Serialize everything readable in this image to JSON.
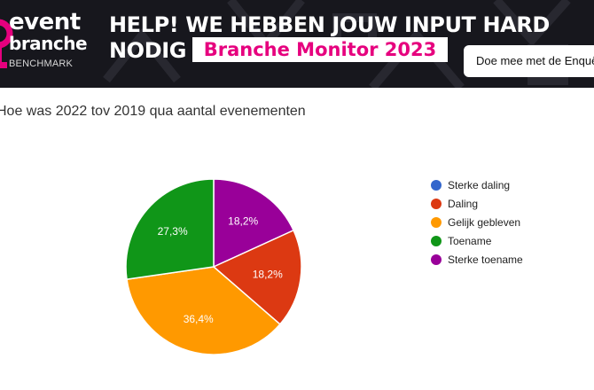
{
  "banner": {
    "logo": {
      "line1": "event",
      "line2": "branche",
      "line3": "BENCHMARK"
    },
    "headline_line1": "HELP! WE HEBBEN JOUW INPUT HARD",
    "headline_line2": "NODIG",
    "badge": "Branche Monitor 2023",
    "cta_label": "Doe mee met de Enquête",
    "colors": {
      "background": "#17171d",
      "brand": "#e6007e"
    }
  },
  "chart_data": {
    "type": "pie",
    "title": "Hoe was 2022 tov 2019 qua aantal evenementen",
    "categories": [
      "Sterke daling",
      "Daling",
      "Gelijk gebleven",
      "Toename",
      "Sterke toename"
    ],
    "values": [
      0,
      18.2,
      36.4,
      27.3,
      18.2
    ],
    "labels": [
      "",
      "18,2%",
      "36,4%",
      "27,3%",
      "18,2%"
    ],
    "colors": [
      "#3366cc",
      "#dc3912",
      "#ff9900",
      "#109618",
      "#990099"
    ],
    "legend_position": "right"
  }
}
